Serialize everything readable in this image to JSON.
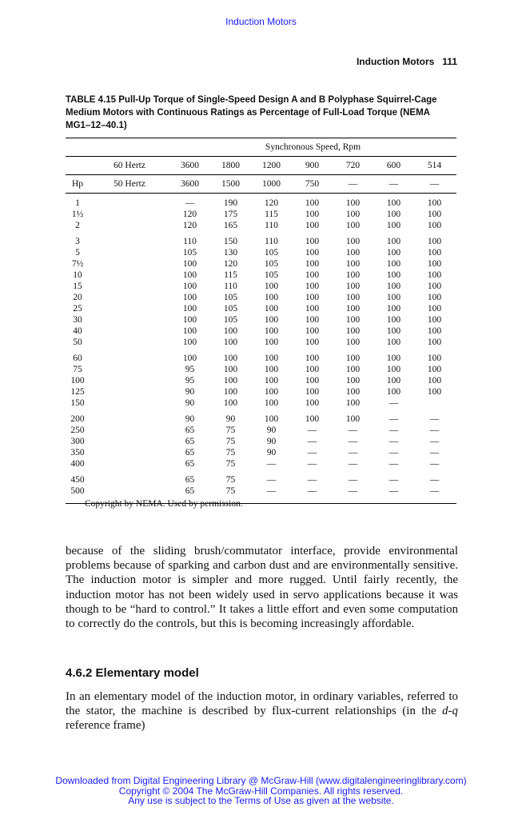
{
  "top_link": "Induction Motors",
  "running_head": {
    "title": "Induction Motors",
    "page": "111"
  },
  "table": {
    "caption": "TABLE 4.15  Pull-Up Torque of Single-Speed Design A and B Polyphase Squirrel-Cage Medium Motors with Continuous Ratings as Percentage of Full-Load Torque (NEMA MG1–12–40.1)",
    "span_header": "Synchronous Speed, Rpm",
    "row60": {
      "label": "60 Hertz",
      "values": [
        "3600",
        "1800",
        "1200",
        "900",
        "720",
        "600",
        "514"
      ]
    },
    "row50": {
      "hp": "Hp",
      "label": "50 Hertz",
      "values": [
        "3600",
        "1500",
        "1000",
        "750",
        "—",
        "—",
        "—"
      ]
    },
    "groups": [
      [
        [
          "1",
          "—",
          "190",
          "120",
          "100",
          "100",
          "100",
          "100"
        ],
        [
          "1½",
          "120",
          "175",
          "115",
          "100",
          "100",
          "100",
          "100"
        ],
        [
          "2",
          "120",
          "165",
          "110",
          "100",
          "100",
          "100",
          "100"
        ]
      ],
      [
        [
          "3",
          "110",
          "150",
          "110",
          "100",
          "100",
          "100",
          "100"
        ],
        [
          "5",
          "105",
          "130",
          "105",
          "100",
          "100",
          "100",
          "100"
        ],
        [
          "7½",
          "100",
          "120",
          "105",
          "100",
          "100",
          "100",
          "100"
        ],
        [
          "10",
          "100",
          "115",
          "105",
          "100",
          "100",
          "100",
          "100"
        ],
        [
          "15",
          "100",
          "110",
          "100",
          "100",
          "100",
          "100",
          "100"
        ],
        [
          "20",
          "100",
          "105",
          "100",
          "100",
          "100",
          "100",
          "100"
        ],
        [
          "25",
          "100",
          "105",
          "100",
          "100",
          "100",
          "100",
          "100"
        ],
        [
          "30",
          "100",
          "105",
          "100",
          "100",
          "100",
          "100",
          "100"
        ],
        [
          "40",
          "100",
          "100",
          "100",
          "100",
          "100",
          "100",
          "100"
        ],
        [
          "50",
          "100",
          "100",
          "100",
          "100",
          "100",
          "100",
          "100"
        ]
      ],
      [
        [
          "60",
          "100",
          "100",
          "100",
          "100",
          "100",
          "100",
          "100"
        ],
        [
          "75",
          "95",
          "100",
          "100",
          "100",
          "100",
          "100",
          "100"
        ],
        [
          "100",
          "95",
          "100",
          "100",
          "100",
          "100",
          "100",
          "100"
        ],
        [
          "125",
          "90",
          "100",
          "100",
          "100",
          "100",
          "100",
          "100"
        ],
        [
          "150",
          "90",
          "100",
          "100",
          "100",
          "100",
          "—",
          ""
        ]
      ],
      [
        [
          "200",
          "90",
          "90",
          "100",
          "100",
          "100",
          "—",
          "—"
        ],
        [
          "250",
          "65",
          "75",
          "90",
          "—",
          "—",
          "—",
          "—"
        ],
        [
          "300",
          "65",
          "75",
          "90",
          "—",
          "—",
          "—",
          "—"
        ],
        [
          "350",
          "65",
          "75",
          "90",
          "—",
          "—",
          "—",
          "—"
        ],
        [
          "400",
          "65",
          "75",
          "—",
          "—",
          "—",
          "—",
          "—"
        ]
      ],
      [
        [
          "450",
          "65",
          "75",
          "—",
          "—",
          "—",
          "—",
          "—"
        ],
        [
          "500",
          "65",
          "75",
          "—",
          "—",
          "—",
          "—",
          "—"
        ]
      ]
    ],
    "copyright": "Copyright by NEMA. Used by permission."
  },
  "body_text": "because of the sliding brush/commutator interface, provide environmental problems because of sparking and carbon dust and are environmentally sensitive. The induction motor is simpler and more rugged. Until fairly recently, the induction motor has not been widely used in servo applications because it was though to be “hard to control.” It takes a little effort and even some computation to correctly do the controls, but this is becoming increasingly affordable.",
  "section_heading": "4.6.2 Elementary model",
  "body_text2_a": "In an elementary model of the induction motor, in ordinary variables, referred to the stator, the machine is described by flux-current relationships (in the ",
  "body_text2_em": "d-q",
  "body_text2_b": " reference frame)",
  "footer": [
    "Downloaded from Digital Engineering Library @ McGraw-Hill (www.digitalengineeringlibrary.com)",
    "Copyright © 2004 The McGraw-Hill Companies. All rights reserved.",
    "Any use is subject to the Terms of Use as given at the website."
  ]
}
